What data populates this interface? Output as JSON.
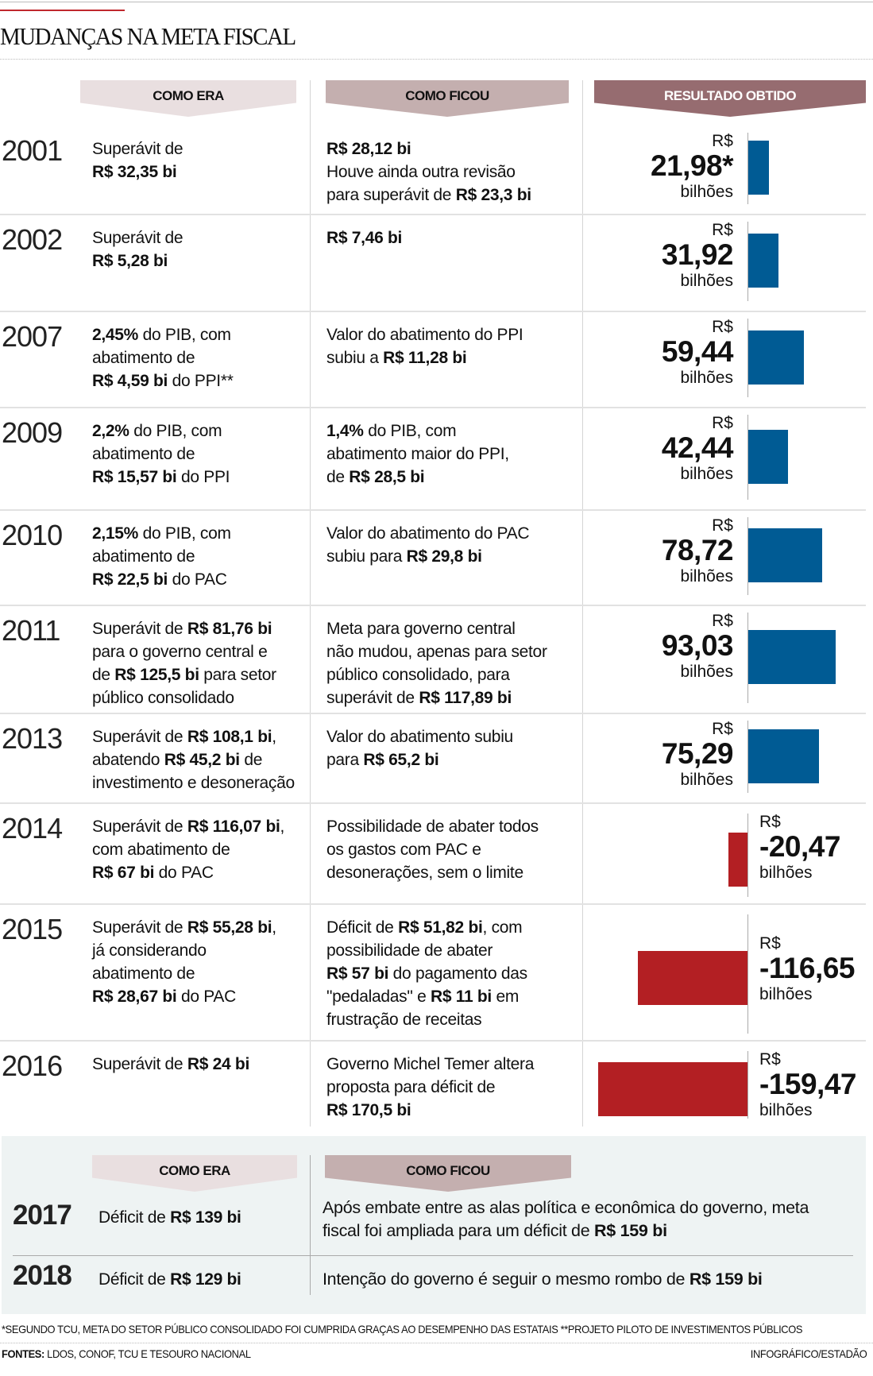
{
  "title": "MUDANÇAS NA META FISCAL",
  "headers": {
    "como_era": "COMO ERA",
    "como_ficou": "COMO FICOU",
    "resultado": "RESULTADO OBTIDO"
  },
  "colors": {
    "positive": "#005b94",
    "negative": "#b31f23",
    "hdr_era": "#e9dfe0",
    "hdr_ficou": "#c4afaf",
    "hdr_result": "#966c70"
  },
  "chart_data": {
    "type": "bar",
    "orientation": "horizontal",
    "unit_prefix": "R$",
    "unit_suffix": "bilhões",
    "categories": [
      "2001",
      "2002",
      "2007",
      "2009",
      "2010",
      "2011",
      "2013",
      "2014",
      "2015",
      "2016"
    ],
    "values": [
      21.98,
      31.92,
      59.44,
      42.44,
      78.72,
      93.03,
      75.29,
      -20.47,
      -116.65,
      -159.47
    ],
    "labels": [
      "21,98*",
      "31,92",
      "59,44",
      "42,44",
      "78,72",
      "93,03",
      "75,29",
      "-20,47",
      "-116,65",
      "-159,47"
    ]
  },
  "rows": [
    {
      "year": "2001",
      "era": [
        [
          "Superávit de",
          0
        ],
        [
          "\n",
          0
        ],
        [
          "R$ 32,35 bi",
          1
        ]
      ],
      "ficou": [
        [
          "R$ 28,12 bi",
          1
        ],
        [
          "\n",
          0
        ],
        [
          "Houve ainda outra revisão",
          0
        ],
        [
          "\n",
          0
        ],
        [
          "para superávit de ",
          0
        ],
        [
          "R$ 23,3 bi",
          1
        ]
      ]
    },
    {
      "year": "2002",
      "era": [
        [
          "Superávit de",
          0
        ],
        [
          "\n",
          0
        ],
        [
          "R$ 5,28 bi",
          1
        ]
      ],
      "ficou": [
        [
          "R$ 7,46 bi",
          1
        ]
      ]
    },
    {
      "year": "2007",
      "era": [
        [
          "2,45%",
          1
        ],
        [
          " do PIB, com",
          0
        ],
        [
          "\n",
          0
        ],
        [
          "abatimento de",
          0
        ],
        [
          "\n",
          0
        ],
        [
          "R$ 4,59 bi",
          1
        ],
        [
          " do PPI**",
          0
        ]
      ],
      "ficou": [
        [
          "Valor do abatimento do PPI",
          0
        ],
        [
          "\n",
          0
        ],
        [
          "subiu a ",
          0
        ],
        [
          "R$ 11,28 bi",
          1
        ]
      ]
    },
    {
      "year": "2009",
      "era": [
        [
          "2,2%",
          1
        ],
        [
          " do PIB, com",
          0
        ],
        [
          "\n",
          0
        ],
        [
          "abatimento de",
          0
        ],
        [
          "\n",
          0
        ],
        [
          "R$ 15,57 bi",
          1
        ],
        [
          " do PPI",
          0
        ]
      ],
      "ficou": [
        [
          "1,4%",
          1
        ],
        [
          " do PIB, com",
          0
        ],
        [
          "\n",
          0
        ],
        [
          "abatimento maior do PPI,",
          0
        ],
        [
          "\n",
          0
        ],
        [
          "de ",
          0
        ],
        [
          "R$ 28,5 bi",
          1
        ]
      ]
    },
    {
      "year": "2010",
      "era": [
        [
          "2,15%",
          1
        ],
        [
          " do PIB, com",
          0
        ],
        [
          "\n",
          0
        ],
        [
          "abatimento de",
          0
        ],
        [
          "\n",
          0
        ],
        [
          "R$ 22,5 bi",
          1
        ],
        [
          " do PAC",
          0
        ]
      ],
      "ficou": [
        [
          "Valor do abatimento do PAC",
          0
        ],
        [
          "\n",
          0
        ],
        [
          "subiu para ",
          0
        ],
        [
          "R$ 29,8 bi",
          1
        ]
      ]
    },
    {
      "year": "2011",
      "era": [
        [
          "Superávit de ",
          0
        ],
        [
          "R$ 81,76 bi",
          1
        ],
        [
          "\n",
          0
        ],
        [
          "para o governo central e",
          0
        ],
        [
          "\n",
          0
        ],
        [
          "de ",
          0
        ],
        [
          "R$ 125,5 bi",
          1
        ],
        [
          " para setor",
          0
        ],
        [
          "\n",
          0
        ],
        [
          "público consolidado",
          0
        ]
      ],
      "ficou": [
        [
          "Meta para governo central",
          0
        ],
        [
          "\n",
          0
        ],
        [
          "não mudou, apenas para setor",
          0
        ],
        [
          "\n",
          0
        ],
        [
          "público consolidado, para",
          0
        ],
        [
          "\n",
          0
        ],
        [
          "superávit de ",
          0
        ],
        [
          "R$ 117,89 bi",
          1
        ]
      ]
    },
    {
      "year": "2013",
      "era": [
        [
          "Superávit de ",
          0
        ],
        [
          "R$ 108,1 bi",
          1
        ],
        [
          ",",
          0
        ],
        [
          "\n",
          0
        ],
        [
          "abatendo ",
          0
        ],
        [
          "R$ 45,2 bi",
          1
        ],
        [
          " de",
          0
        ],
        [
          "\n",
          0
        ],
        [
          "investimento e desoneração",
          0
        ]
      ],
      "ficou": [
        [
          "Valor do abatimento subiu",
          0
        ],
        [
          "\n",
          0
        ],
        [
          "para ",
          0
        ],
        [
          "R$ 65,2 bi",
          1
        ]
      ]
    },
    {
      "year": "2014",
      "era": [
        [
          "Superávit de ",
          0
        ],
        [
          "R$ 116,07 bi",
          1
        ],
        [
          ",",
          0
        ],
        [
          "\n",
          0
        ],
        [
          "com abatimento de",
          0
        ],
        [
          "\n",
          0
        ],
        [
          "R$ 67 bi",
          1
        ],
        [
          " do PAC",
          0
        ]
      ],
      "ficou": [
        [
          "Possibilidade de abater todos",
          0
        ],
        [
          "\n",
          0
        ],
        [
          "os gastos com PAC e",
          0
        ],
        [
          "\n",
          0
        ],
        [
          "desonerações, sem o limite",
          0
        ]
      ]
    },
    {
      "year": "2015",
      "era": [
        [
          "Superávit de ",
          0
        ],
        [
          "R$ 55,28 bi",
          1
        ],
        [
          ",",
          0
        ],
        [
          "\n",
          0
        ],
        [
          "já considerando",
          0
        ],
        [
          "\n",
          0
        ],
        [
          "abatimento de",
          0
        ],
        [
          "\n",
          0
        ],
        [
          "R$ 28,67 bi",
          1
        ],
        [
          " do PAC",
          0
        ]
      ],
      "ficou": [
        [
          "Déficit de ",
          0
        ],
        [
          "R$ 51,82 bi",
          1
        ],
        [
          ", com",
          0
        ],
        [
          "\n",
          0
        ],
        [
          "possibilidade de abater",
          0
        ],
        [
          "\n",
          0
        ],
        [
          "R$ 57 bi",
          1
        ],
        [
          " do pagamento das",
          0
        ],
        [
          "\n",
          0
        ],
        [
          "\"pedaladas\" e ",
          0
        ],
        [
          "R$ 11 bi",
          1
        ],
        [
          " em",
          0
        ],
        [
          "\n",
          0
        ],
        [
          "frustração de receitas",
          0
        ]
      ]
    },
    {
      "year": "2016",
      "era": [
        [
          "Superávit de ",
          0
        ],
        [
          "R$ 24 bi",
          1
        ]
      ],
      "ficou": [
        [
          "Governo Michel Temer altera",
          0
        ],
        [
          "\n",
          0
        ],
        [
          "proposta para déficit de",
          0
        ],
        [
          "\n",
          0
        ],
        [
          "R$ 170,5 bi",
          1
        ]
      ]
    }
  ],
  "future": [
    {
      "year": "2017",
      "era": [
        [
          "Déficit de ",
          0
        ],
        [
          "R$ 139 bi",
          1
        ]
      ],
      "ficou": [
        [
          "Após embate entre as alas política e econômica do governo, meta",
          0
        ],
        [
          "\n",
          0
        ],
        [
          "fiscal foi ampliada para um déficit de ",
          0
        ],
        [
          "R$ 159 bi",
          1
        ]
      ]
    },
    {
      "year": "2018",
      "era": [
        [
          "Déficit de ",
          0
        ],
        [
          "R$ 129 bi",
          1
        ]
      ],
      "ficou": [
        [
          "Intenção do governo é seguir o mesmo rombo de ",
          0
        ],
        [
          "R$ 159 bi",
          1
        ]
      ]
    }
  ],
  "footnote": "*SEGUNDO TCU, META DO SETOR PÚBLICO CONSOLIDADO FOI CUMPRIDA GRAÇAS AO DESEMPENHO DAS ESTATAIS **PROJETO PILOTO DE INVESTIMENTOS PÚBLICOS",
  "sources_label": "FONTES:",
  "sources": " LDOS, CONOF, TCU E TESOURO NACIONAL",
  "credit": "INFOGRÁFICO/ESTADÃO"
}
